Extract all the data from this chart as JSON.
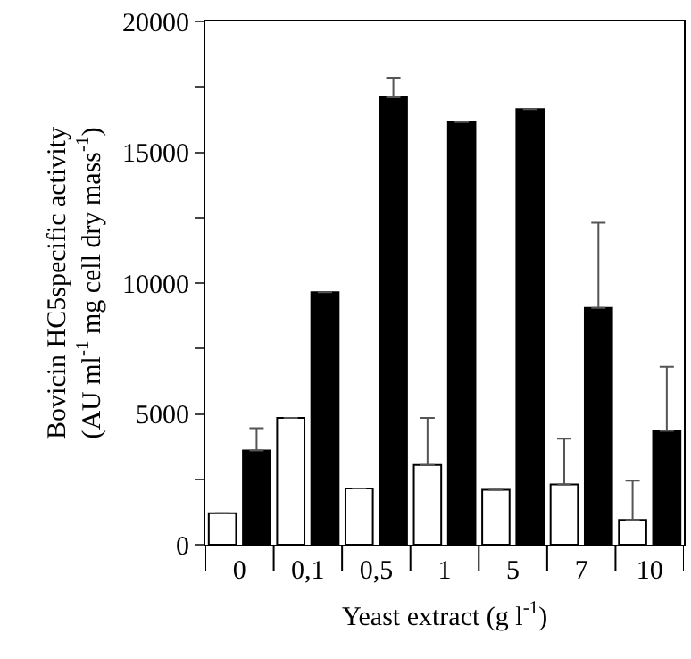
{
  "chart_data": {
    "type": "bar",
    "xlabel": "Yeast extract (g l$^{-1}$)",
    "ylabel": "Bovicin HC5specific activity\n(AU ml$^{-1}$ mg cell dry mass$^{-1}$)",
    "categories": [
      "0",
      "0,1",
      "0,5",
      "1",
      "5",
      "7",
      "10"
    ],
    "series": [
      {
        "color": "#ffffff",
        "values": [
          1200,
          4850,
          2150,
          3050,
          2100,
          2300,
          950
        ],
        "errors": [
          null,
          null,
          null,
          [
            3050,
            4850
          ],
          null,
          [
            2300,
            4050
          ],
          [
            950,
            2450
          ]
        ]
      },
      {
        "color": "#000000",
        "values": [
          3600,
          9650,
          17100,
          16150,
          16650,
          9050,
          4350
        ],
        "errors": [
          [
            3600,
            4450
          ],
          null,
          [
            17100,
            17850
          ],
          null,
          null,
          [
            9050,
            12300
          ],
          [
            4350,
            6800
          ]
        ]
      }
    ],
    "ylim": [
      0,
      20000
    ],
    "yticks": [
      0,
      {
        "value": 2500,
        "label": null
      },
      5000,
      {
        "value": 7500,
        "label": null
      },
      10000,
      {
        "value": 12500,
        "label": null
      },
      15000,
      {
        "value": 17500,
        "label": null
      },
      20000
    ]
  }
}
